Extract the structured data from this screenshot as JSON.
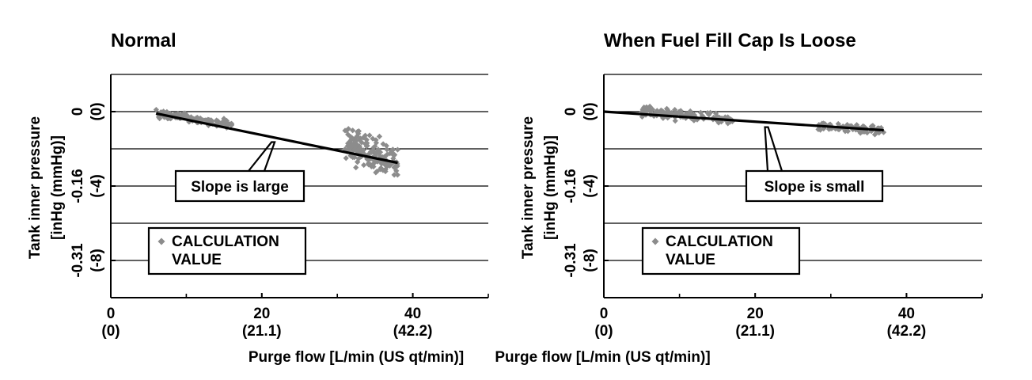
{
  "chart_data": [
    {
      "type": "scatter",
      "title": "Normal",
      "xlabel": "Purge flow [L/min (US qt/min)]",
      "ylabel_line1": "Tank inner pressure",
      "ylabel_line2": "[inHg (mmHg)]",
      "xlim": [
        0,
        50
      ],
      "ylim": [
        -10,
        2
      ],
      "x_ticks": [
        {
          "value": 0,
          "label": "0",
          "sublabel": "(0)"
        },
        {
          "value": 20,
          "label": "20",
          "sublabel": "(21.1)"
        },
        {
          "value": 40,
          "label": "40",
          "sublabel": "(42.2)"
        }
      ],
      "y_ticks": [
        {
          "value": 0,
          "label": "0",
          "sublabel": "(0)"
        },
        {
          "value": -4,
          "label": "-0.16",
          "sublabel": "(-4)"
        },
        {
          "value": -8,
          "label": "-0.31",
          "sublabel": "(-8)"
        }
      ],
      "gridlines_y": [
        2,
        0,
        -2,
        -4,
        -6,
        -8
      ],
      "grid": true,
      "legend": {
        "label_line1": "CALCULATION",
        "label_line2": "VALUE",
        "position": "bottom-left"
      },
      "series": [
        {
          "name": "CALCULATION VALUE",
          "marker": "diamond",
          "color": "#8c8c8c",
          "clusters": [
            {
              "x_range": [
                6,
                16
              ],
              "y_at_start": -0.1,
              "y_at_end": -0.7,
              "y_spread": 0.35,
              "points": 110
            },
            {
              "x_range": [
                31,
                38
              ],
              "y_at_start": -1.6,
              "y_at_end": -2.8,
              "y_spread": 1.3,
              "points": 170
            }
          ]
        }
      ],
      "trend_line": {
        "x": [
          6,
          38
        ],
        "y": [
          -0.1,
          -2.75
        ]
      },
      "annotation": {
        "text": "Slope is large",
        "target_x": 21.5
      }
    },
    {
      "type": "scatter",
      "title": "When Fuel Fill Cap Is Loose",
      "xlabel": "Purge flow [L/min (US qt/min)]",
      "ylabel_line1": "Tank inner pressure",
      "ylabel_line2": "[inHg (mmHg)]",
      "xlim": [
        0,
        50
      ],
      "ylim": [
        -10,
        2
      ],
      "x_ticks": [
        {
          "value": 0,
          "label": "0",
          "sublabel": "(0)"
        },
        {
          "value": 20,
          "label": "20",
          "sublabel": "(21.1)"
        },
        {
          "value": 40,
          "label": "40",
          "sublabel": "(42.2)"
        }
      ],
      "y_ticks": [
        {
          "value": 0,
          "label": "0",
          "sublabel": "(0)"
        },
        {
          "value": -4,
          "label": "-0.16",
          "sublabel": "(-4)"
        },
        {
          "value": -8,
          "label": "-0.31",
          "sublabel": "(-8)"
        }
      ],
      "gridlines_y": [
        2,
        0,
        -2,
        -4,
        -6,
        -8
      ],
      "grid": true,
      "legend": {
        "label_line1": "CALCULATION",
        "label_line2": "VALUE",
        "position": "bottom-left"
      },
      "series": [
        {
          "name": "CALCULATION VALUE",
          "marker": "diamond",
          "color": "#8c8c8c",
          "clusters": [
            {
              "x_range": [
                5,
                17
              ],
              "y_at_start": 0.0,
              "y_at_end": -0.45,
              "y_spread": 0.45,
              "points": 120
            },
            {
              "x_range": [
                28,
                37
              ],
              "y_at_start": -0.8,
              "y_at_end": -1.0,
              "y_spread": 0.35,
              "points": 70
            }
          ]
        }
      ],
      "trend_line": {
        "x": [
          0,
          37
        ],
        "y": [
          0,
          -1.0
        ]
      },
      "annotation": {
        "text": "Slope is small",
        "target_x": 21.5
      }
    }
  ]
}
